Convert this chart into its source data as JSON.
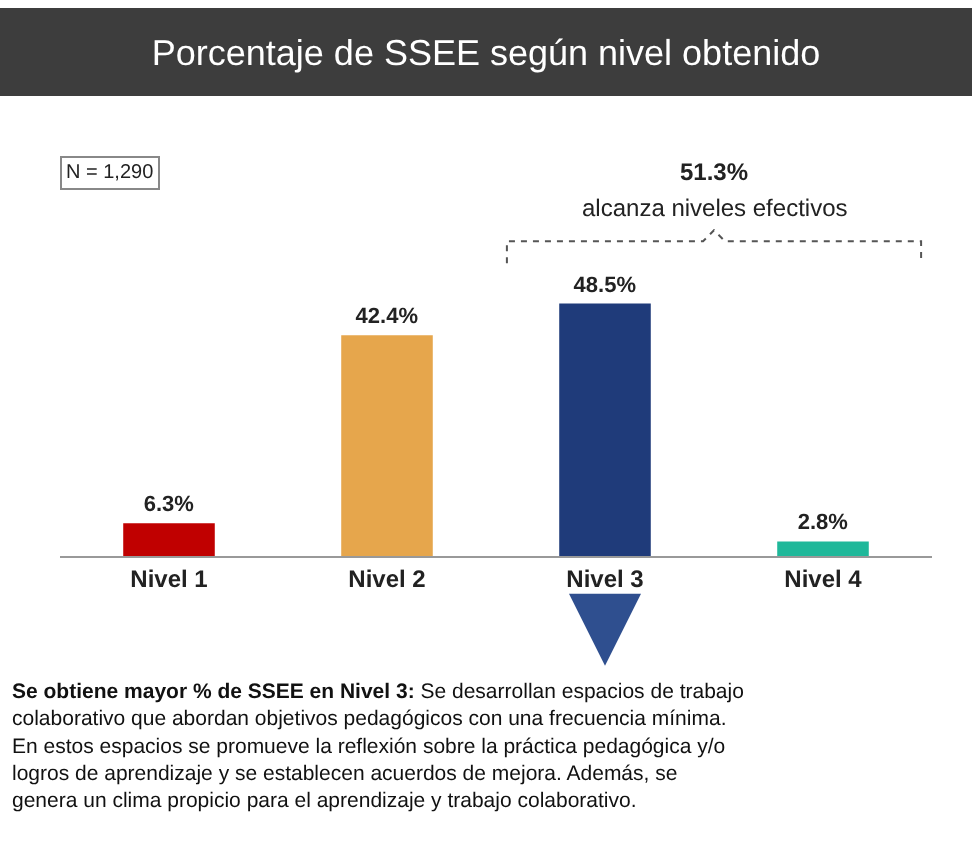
{
  "chart_data": {
    "type": "bar",
    "title": "Porcentaje de SSEE según nivel obtenido",
    "categories": [
      "Nivel 1",
      "Nivel 2",
      "Nivel 3",
      "Nivel 4"
    ],
    "values": [
      6.3,
      42.4,
      48.5,
      2.8
    ],
    "colors": [
      "#c00000",
      "#e6a64c",
      "#1f3b7a",
      "#1fb89a"
    ],
    "value_labels": [
      "6.3%",
      "42.4%",
      "48.5%",
      "2.8%"
    ],
    "annotations": [
      "N = 1,290",
      "51.3%",
      "alcanza niveles efectivos",
      "Se obtiene mayor % de SSEE en Nivel 3:",
      "Se desarrollan espacios de trabajo\ncolaborativo que abordan objetivos pedagógicos con una frecuencia mínima.\nEn estos espacios se promueve la reflexión sobre la práctica pedagógica y/o\nlogros de aprendizaje y se establecen acuerdos de mejora. Además, se\ngenera un clima propicio para el aprendizaje y trabajo colaborativo."
    ],
    "legend": false
  }
}
